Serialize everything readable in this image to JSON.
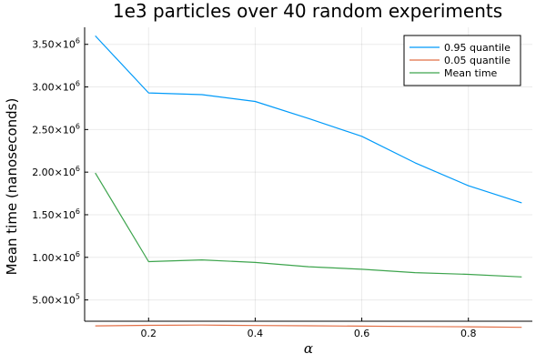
{
  "chart_data": {
    "type": "line",
    "title": "1e3 particles over 40 random experiments",
    "xlabel": "α",
    "ylabel": "Mean time (nanoseconds)",
    "xlim": [
      0.08,
      0.92
    ],
    "ylim": [
      250000,
      3700000
    ],
    "grid": true,
    "legend_position": "top-right",
    "x": [
      0.1,
      0.2,
      0.3,
      0.4,
      0.5,
      0.6,
      0.7,
      0.8,
      0.9
    ],
    "x_ticks": [
      {
        "value": 0.2,
        "label": "0.2"
      },
      {
        "value": 0.4,
        "label": "0.4"
      },
      {
        "value": 0.6,
        "label": "0.6"
      },
      {
        "value": 0.8,
        "label": "0.8"
      }
    ],
    "y_ticks": [
      {
        "value": 500000,
        "mantissa": "5.00×10",
        "exp": "5"
      },
      {
        "value": 1000000,
        "mantissa": "1.00×10",
        "exp": "6"
      },
      {
        "value": 1500000,
        "mantissa": "1.50×10",
        "exp": "6"
      },
      {
        "value": 2000000,
        "mantissa": "2.00×10",
        "exp": "6"
      },
      {
        "value": 2500000,
        "mantissa": "2.50×10",
        "exp": "6"
      },
      {
        "value": 3000000,
        "mantissa": "3.00×10",
        "exp": "6"
      },
      {
        "value": 3500000,
        "mantissa": "3.50×10",
        "exp": "6"
      }
    ],
    "series": [
      {
        "name": "0.95 quantile",
        "color": "#009af9",
        "values": [
          3600000,
          2930000,
          2910000,
          2830000,
          2630000,
          2420000,
          2110000,
          1840000,
          1640000
        ]
      },
      {
        "name": "0.05 quantile",
        "color": "#e26f46",
        "values": [
          195000,
          202000,
          205000,
          200000,
          197000,
          192000,
          188000,
          185000,
          178000
        ]
      },
      {
        "name": "Mean time",
        "color": "#3da44d",
        "values": [
          1990000,
          950000,
          970000,
          940000,
          890000,
          860000,
          820000,
          800000,
          770000
        ]
      }
    ]
  }
}
